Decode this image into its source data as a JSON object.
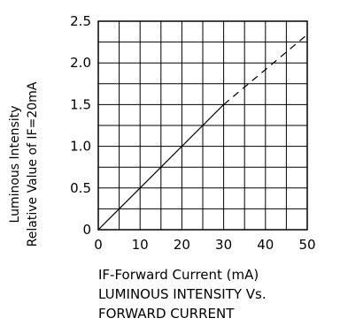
{
  "chart_data": {
    "type": "line",
    "xlabel": "IF-Forward Current (mA)",
    "ylabel_line1": "Luminous Intensity",
    "ylabel_line2": "Relative Value of IF=20mA",
    "caption_line1": "LUMINOUS INTENSITY Vs.",
    "caption_line2": "FORWARD CURRENT",
    "x_ticks": [
      "0",
      "10",
      "20",
      "30",
      "40",
      "50"
    ],
    "y_ticks": [
      "0",
      "0.5",
      "1.0",
      "1.5",
      "2.0",
      "2.5"
    ],
    "xlim": [
      0,
      50
    ],
    "ylim": [
      0,
      2.5
    ],
    "grid": true,
    "series": [
      {
        "style": "solid",
        "x": [
          0,
          30
        ],
        "y": [
          0,
          1.5
        ]
      },
      {
        "style": "dashed",
        "x": [
          30,
          50
        ],
        "y": [
          1.5,
          2.34
        ]
      }
    ]
  }
}
